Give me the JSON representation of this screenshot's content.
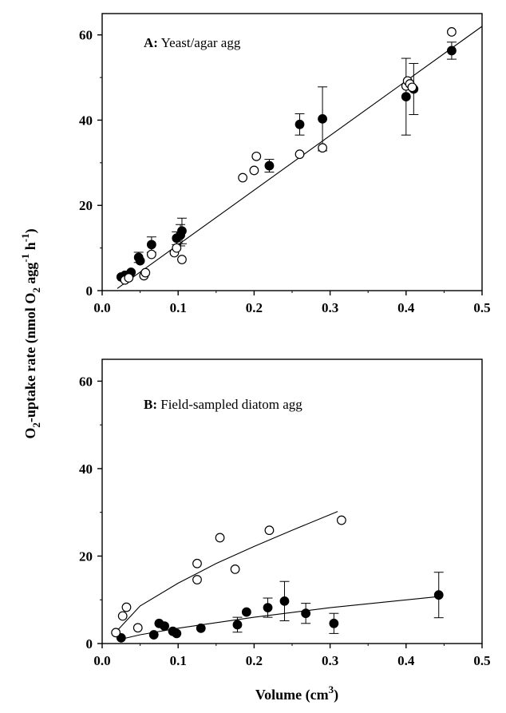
{
  "figure": {
    "ylabel": "O2-uptake rate (nmol O2 agg-1 h-1)",
    "ylabel_parts": {
      "o": "O",
      "sub1": "2",
      "mid": "-uptake rate (nmol O",
      "sub2": "2",
      "agg": " agg",
      "sup1": "-1",
      "h": " h",
      "sup2": "-1",
      "close": ")"
    },
    "xlabel": "Volume (cm3)",
    "xlabel_parts": {
      "main": "Volume (cm",
      "sup": "3",
      "close": ")"
    }
  },
  "chart_data": [
    {
      "type": "scatter",
      "title": "A: Yeast/agar agg",
      "title_letter": "A:",
      "title_text": " Yeast/agar agg",
      "xlim": [
        0,
        0.5
      ],
      "ylim": [
        0,
        65
      ],
      "xticks": [
        "0.0",
        "0.1",
        "0.2",
        "0.3",
        "0.4",
        "0.5"
      ],
      "yticks": [
        "0",
        "20",
        "40",
        "60"
      ],
      "xtick_values": [
        0,
        0.1,
        0.2,
        0.3,
        0.4,
        0.5
      ],
      "ytick_values": [
        0,
        20,
        40,
        60
      ],
      "series": [
        {
          "marker": "filled-circle",
          "points": [
            {
              "x": 0.025,
              "y": 3.2
            },
            {
              "x": 0.03,
              "y": 3.6
            },
            {
              "x": 0.038,
              "y": 4.3
            },
            {
              "x": 0.048,
              "y": 7.8,
              "err": 1.2
            },
            {
              "x": 0.05,
              "y": 7.0
            },
            {
              "x": 0.065,
              "y": 10.8,
              "err": 1.8
            },
            {
              "x": 0.098,
              "y": 12.3,
              "err": 1.5
            },
            {
              "x": 0.103,
              "y": 13.0,
              "err": 2.5
            },
            {
              "x": 0.105,
              "y": 14.0,
              "err": 3.0
            },
            {
              "x": 0.22,
              "y": 29.3,
              "err": 1.5
            },
            {
              "x": 0.26,
              "y": 39.0,
              "err": 2.5
            },
            {
              "x": 0.29,
              "y": 40.3,
              "err": 7.5
            },
            {
              "x": 0.4,
              "y": 45.5,
              "err": 9.0
            },
            {
              "x": 0.41,
              "y": 47.3,
              "err": 6.0
            },
            {
              "x": 0.46,
              "y": 56.3,
              "err": 2.0
            }
          ]
        },
        {
          "marker": "open-circle",
          "points": [
            {
              "x": 0.03,
              "y": 2.5
            },
            {
              "x": 0.035,
              "y": 3.0
            },
            {
              "x": 0.055,
              "y": 3.5
            },
            {
              "x": 0.057,
              "y": 4.2
            },
            {
              "x": 0.065,
              "y": 8.5
            },
            {
              "x": 0.095,
              "y": 8.9
            },
            {
              "x": 0.098,
              "y": 10.0
            },
            {
              "x": 0.105,
              "y": 7.3
            },
            {
              "x": 0.185,
              "y": 26.5
            },
            {
              "x": 0.2,
              "y": 28.2
            },
            {
              "x": 0.203,
              "y": 31.5
            },
            {
              "x": 0.26,
              "y": 32.0
            },
            {
              "x": 0.29,
              "y": 33.5
            },
            {
              "x": 0.4,
              "y": 48.0
            },
            {
              "x": 0.402,
              "y": 49.2
            },
            {
              "x": 0.405,
              "y": 48.5
            },
            {
              "x": 0.408,
              "y": 47.7
            },
            {
              "x": 0.46,
              "y": 60.7
            }
          ]
        }
      ],
      "fits": [
        {
          "points": [
            [
              0.02,
              0.5
            ],
            [
              0.5,
              62
            ]
          ]
        }
      ]
    },
    {
      "type": "scatter",
      "title": "B: Field-sampled diatom agg",
      "title_letter": "B:",
      "title_text": " Field-sampled diatom agg",
      "xlim": [
        0,
        0.5
      ],
      "ylim": [
        0,
        65
      ],
      "xticks": [
        "0.0",
        "0.1",
        "0.2",
        "0.3",
        "0.4",
        "0.5"
      ],
      "yticks": [
        "0",
        "20",
        "40",
        "60"
      ],
      "xtick_values": [
        0,
        0.1,
        0.2,
        0.3,
        0.4,
        0.5
      ],
      "ytick_values": [
        0,
        20,
        40,
        60
      ],
      "series": [
        {
          "marker": "filled-circle",
          "points": [
            {
              "x": 0.025,
              "y": 1.3
            },
            {
              "x": 0.068,
              "y": 2.0
            },
            {
              "x": 0.075,
              "y": 4.6
            },
            {
              "x": 0.082,
              "y": 4.0
            },
            {
              "x": 0.093,
              "y": 2.8
            },
            {
              "x": 0.098,
              "y": 2.3
            },
            {
              "x": 0.13,
              "y": 3.5
            },
            {
              "x": 0.178,
              "y": 4.3,
              "err": 1.7
            },
            {
              "x": 0.19,
              "y": 7.2
            },
            {
              "x": 0.218,
              "y": 8.2,
              "err": 2.2
            },
            {
              "x": 0.24,
              "y": 9.7,
              "err": 4.5
            },
            {
              "x": 0.268,
              "y": 6.9,
              "err": 2.3
            },
            {
              "x": 0.305,
              "y": 4.6,
              "err": 2.3
            },
            {
              "x": 0.443,
              "y": 11.1,
              "err": 5.2
            }
          ]
        },
        {
          "marker": "open-circle",
          "points": [
            {
              "x": 0.018,
              "y": 2.5
            },
            {
              "x": 0.027,
              "y": 6.3
            },
            {
              "x": 0.032,
              "y": 8.3
            },
            {
              "x": 0.047,
              "y": 3.6
            },
            {
              "x": 0.125,
              "y": 18.3
            },
            {
              "x": 0.125,
              "y": 14.6
            },
            {
              "x": 0.155,
              "y": 24.2
            },
            {
              "x": 0.175,
              "y": 17.0
            },
            {
              "x": 0.22,
              "y": 25.9
            },
            {
              "x": 0.315,
              "y": 28.2
            }
          ]
        }
      ],
      "fits": [
        {
          "points": [
            [
              0.02,
              3.0
            ],
            [
              0.05,
              8.6
            ],
            [
              0.1,
              13.8
            ],
            [
              0.15,
              18.3
            ],
            [
              0.2,
              22.2
            ],
            [
              0.25,
              25.9
            ],
            [
              0.31,
              30.2
            ]
          ]
        },
        {
          "points": [
            [
              0.02,
              0.8
            ],
            [
              0.05,
              2.0
            ],
            [
              0.1,
              3.5
            ],
            [
              0.2,
              6.0
            ],
            [
              0.3,
              8.2
            ],
            [
              0.44,
              10.7
            ]
          ]
        }
      ]
    }
  ]
}
